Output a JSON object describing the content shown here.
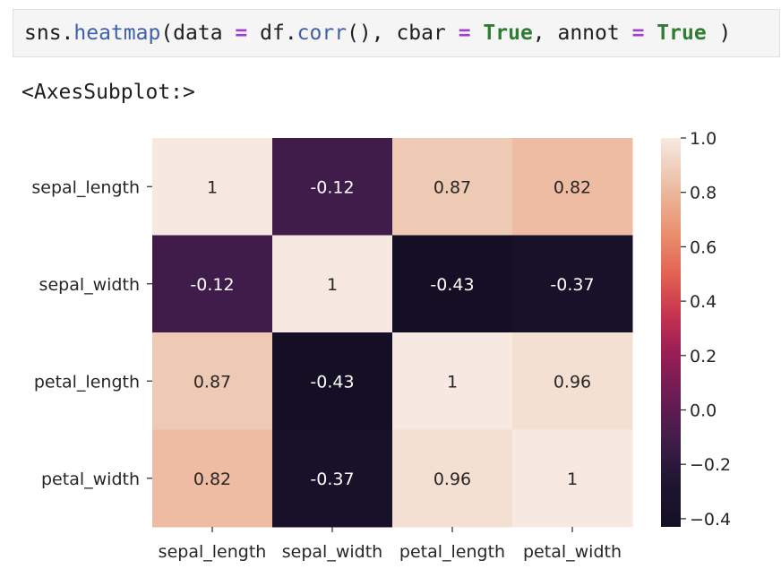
{
  "cell": {
    "code": {
      "t0": "sns.",
      "t1": "heatmap",
      "t2": "(data ",
      "t3": "=",
      "t4": " df.",
      "t5": "corr",
      "t6": "(), cbar ",
      "t7": "=",
      "t8": " ",
      "t9": "True",
      "t10": ", annot ",
      "t11": "=",
      "t12": " ",
      "t13": "True",
      "t14": " )"
    },
    "output_text": "<AxesSubplot:>"
  },
  "colors": {
    "code_bg": "#f5f5f5",
    "function": "#3f5fa8",
    "operator": "#a23fd1",
    "keyword": "#2f7d32"
  },
  "chart_data": {
    "type": "heatmap",
    "colormap": "rocket",
    "rows": [
      "sepal_length",
      "sepal_width",
      "petal_length",
      "petal_width"
    ],
    "cols": [
      "sepal_length",
      "sepal_width",
      "petal_length",
      "petal_width"
    ],
    "values": [
      [
        1,
        -0.12,
        0.87,
        0.82
      ],
      [
        -0.12,
        1,
        -0.43,
        -0.37
      ],
      [
        0.87,
        -0.43,
        1,
        0.96
      ],
      [
        0.82,
        -0.37,
        0.96,
        1
      ]
    ],
    "annotations": [
      [
        "1",
        "-0.12",
        "0.87",
        "0.82"
      ],
      [
        "-0.12",
        "1",
        "-0.43",
        "-0.37"
      ],
      [
        "0.87",
        "-0.43",
        "1",
        "0.96"
      ],
      [
        "0.82",
        "-0.37",
        "0.96",
        "1"
      ]
    ],
    "colorbar": {
      "range": [
        -0.43,
        1
      ],
      "ticks": [
        1.0,
        0.8,
        0.6,
        0.4,
        0.2,
        0.0,
        -0.2,
        -0.4
      ],
      "tick_labels": [
        "1.0",
        "0.8",
        "0.6",
        "0.4",
        "0.2",
        "0.0",
        "−0.2",
        "−0.4"
      ]
    }
  }
}
